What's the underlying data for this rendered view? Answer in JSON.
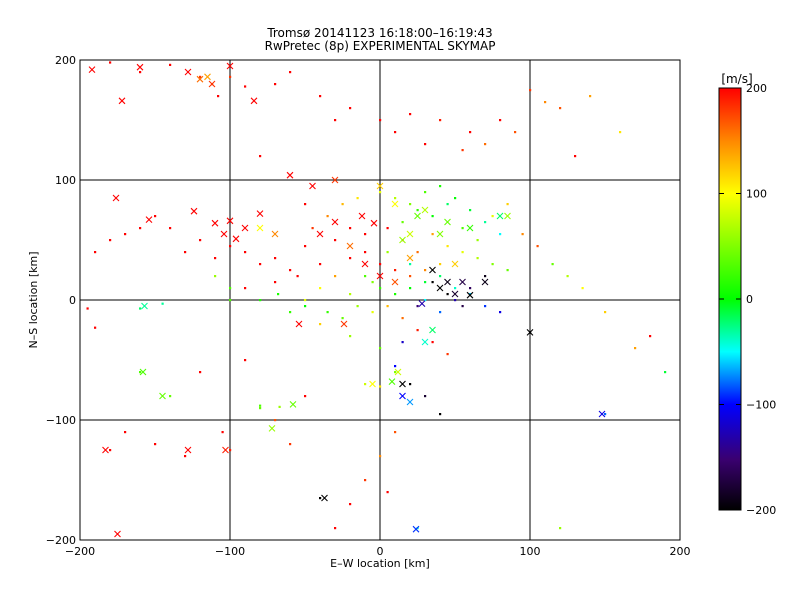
{
  "chart_data": {
    "type": "scatter",
    "title_line1": "Tromsø 20141123 16:18:00–16:19:43",
    "title_line2": "RwPretec (8p) EXPERIMENTAL SKYMAP",
    "xlabel": "E–W location [km]",
    "ylabel": "N–S location [km]",
    "xlim": [
      -200,
      200
    ],
    "ylim": [
      -200,
      200
    ],
    "xticks": [
      -200,
      -100,
      0,
      100,
      200
    ],
    "yticks": [
      -200,
      -100,
      0,
      100,
      200
    ],
    "xtick_labels": [
      "−200",
      "−100",
      "0",
      "100",
      "200"
    ],
    "ytick_labels": [
      "−200",
      "−100",
      "0",
      "100",
      "200"
    ],
    "grid": true,
    "colorbar": {
      "label": "[m/s]",
      "range": [
        -200,
        200
      ],
      "ticks": [
        200,
        100,
        0,
        -100,
        -200
      ],
      "tick_labels": [
        "200",
        "100",
        "0",
        "−100",
        "−200"
      ]
    },
    "points_note": "Each entry: [x_km, y_km, velocity_m_s]; small dots are individual echoes",
    "points": [
      [
        -180,
        198,
        200
      ],
      [
        -160,
        190,
        200
      ],
      [
        -140,
        196,
        200
      ],
      [
        -120,
        186,
        180
      ],
      [
        -112,
        180,
        200
      ],
      [
        -100,
        186,
        180
      ],
      [
        -90,
        178,
        200
      ],
      [
        -70,
        180,
        200
      ],
      [
        -40,
        170,
        200
      ],
      [
        -20,
        160,
        200
      ],
      [
        0,
        150,
        200
      ],
      [
        20,
        155,
        200
      ],
      [
        40,
        150,
        190
      ],
      [
        60,
        140,
        200
      ],
      [
        80,
        150,
        200
      ],
      [
        100,
        175,
        180
      ],
      [
        120,
        160,
        170
      ],
      [
        140,
        170,
        140
      ],
      [
        160,
        140,
        110
      ],
      [
        -60,
        190,
        200
      ],
      [
        -30,
        150,
        200
      ],
      [
        10,
        140,
        200
      ],
      [
        30,
        130,
        200
      ],
      [
        55,
        125,
        180
      ],
      [
        70,
        130,
        160
      ],
      [
        90,
        140,
        170
      ],
      [
        110,
        165,
        150
      ],
      [
        130,
        120,
        200
      ],
      [
        -108,
        170,
        200
      ],
      [
        -80,
        120,
        200
      ],
      [
        -50,
        80,
        200
      ],
      [
        -20,
        60,
        200
      ],
      [
        -10,
        40,
        200
      ],
      [
        0,
        30,
        200
      ],
      [
        10,
        25,
        190
      ],
      [
        20,
        20,
        170
      ],
      [
        30,
        25,
        150
      ],
      [
        40,
        30,
        120
      ],
      [
        -90,
        40,
        200
      ],
      [
        -80,
        30,
        200
      ],
      [
        -70,
        35,
        200
      ],
      [
        -60,
        25,
        200
      ],
      [
        -50,
        45,
        200
      ],
      [
        -40,
        30,
        200
      ],
      [
        -30,
        50,
        200
      ],
      [
        -20,
        35,
        200
      ],
      [
        -10,
        55,
        200
      ],
      [
        5,
        60,
        200
      ],
      [
        15,
        50,
        180
      ],
      [
        25,
        40,
        160
      ],
      [
        35,
        55,
        140
      ],
      [
        45,
        45,
        110
      ],
      [
        55,
        40,
        90
      ],
      [
        65,
        35,
        70
      ],
      [
        75,
        30,
        50
      ],
      [
        85,
        25,
        40
      ],
      [
        -100,
        45,
        200
      ],
      [
        -110,
        35,
        200
      ],
      [
        -120,
        50,
        200
      ],
      [
        -130,
        40,
        200
      ],
      [
        -140,
        60,
        200
      ],
      [
        -150,
        70,
        200
      ],
      [
        -160,
        60,
        200
      ],
      [
        -170,
        55,
        200
      ],
      [
        -180,
        50,
        200
      ],
      [
        -190,
        40,
        200
      ],
      [
        -10,
        20,
        30
      ],
      [
        0,
        10,
        20
      ],
      [
        10,
        5,
        10
      ],
      [
        20,
        10,
        0
      ],
      [
        30,
        15,
        -10
      ],
      [
        40,
        20,
        -20
      ],
      [
        50,
        10,
        -40
      ],
      [
        60,
        5,
        -60
      ],
      [
        70,
        -5,
        -90
      ],
      [
        80,
        -10,
        -110
      ],
      [
        20,
        30,
        -30
      ],
      [
        30,
        0,
        -50
      ],
      [
        40,
        -10,
        -80
      ],
      [
        50,
        0,
        -130
      ],
      [
        60,
        10,
        -160
      ],
      [
        70,
        20,
        -190
      ],
      [
        45,
        5,
        -200
      ],
      [
        35,
        15,
        -200
      ],
      [
        25,
        -5,
        -150
      ],
      [
        55,
        -5,
        -170
      ],
      [
        15,
        -35,
        -120
      ],
      [
        10,
        -55,
        -100
      ],
      [
        20,
        -70,
        -200
      ],
      [
        30,
        -80,
        -180
      ],
      [
        40,
        -95,
        -200
      ],
      [
        -40,
        -165,
        -200
      ],
      [
        -50,
        -80,
        200
      ],
      [
        -60,
        -120,
        180
      ],
      [
        -80,
        -90,
        40
      ],
      [
        -130,
        -130,
        200
      ],
      [
        -150,
        -120,
        200
      ],
      [
        -90,
        -50,
        200
      ],
      [
        -120,
        -60,
        200
      ],
      [
        -40,
        -20,
        120
      ],
      [
        -20,
        -30,
        60
      ],
      [
        0,
        -40,
        40
      ],
      [
        10,
        -60,
        50
      ],
      [
        -10,
        -70,
        80
      ],
      [
        -60,
        -10,
        20
      ],
      [
        -80,
        0,
        10
      ],
      [
        -100,
        10,
        30
      ],
      [
        -110,
        20,
        60
      ],
      [
        -30,
        20,
        140
      ],
      [
        -40,
        10,
        100
      ],
      [
        -50,
        0,
        90
      ],
      [
        -20,
        5,
        70
      ],
      [
        -5,
        15,
        50
      ],
      [
        5,
        40,
        60
      ],
      [
        15,
        65,
        40
      ],
      [
        25,
        75,
        20
      ],
      [
        35,
        70,
        0
      ],
      [
        45,
        80,
        -20
      ],
      [
        55,
        60,
        30
      ],
      [
        65,
        50,
        60
      ],
      [
        75,
        70,
        90
      ],
      [
        85,
        80,
        120
      ],
      [
        95,
        55,
        150
      ],
      [
        105,
        45,
        170
      ],
      [
        115,
        30,
        40
      ],
      [
        125,
        20,
        70
      ],
      [
        135,
        10,
        100
      ],
      [
        150,
        -10,
        120
      ],
      [
        170,
        -40,
        140
      ],
      [
        -160,
        -60,
        30
      ],
      [
        -140,
        -80,
        40
      ],
      [
        -170,
        -110,
        200
      ],
      [
        -180,
        -125,
        200
      ],
      [
        -100,
        -125,
        190
      ],
      [
        -105,
        -110,
        200
      ],
      [
        -70,
        -100,
        170
      ],
      [
        -30,
        -190,
        200
      ],
      [
        -20,
        -170,
        200
      ],
      [
        -10,
        -150,
        180
      ],
      [
        0,
        -130,
        150
      ],
      [
        10,
        -110,
        170
      ],
      [
        25,
        -190,
        -40
      ],
      [
        120,
        -190,
        60
      ],
      [
        100,
        -27,
        -200
      ],
      [
        150,
        -95,
        -80
      ],
      [
        -160,
        -7,
        -20
      ],
      [
        -145,
        -3,
        -30
      ],
      [
        -190,
        -23,
        200
      ],
      [
        -195,
        -7,
        200
      ],
      [
        -80,
        -88,
        30
      ],
      [
        -67,
        -89,
        60
      ],
      [
        0,
        -72,
        110
      ],
      [
        5,
        -160,
        200
      ],
      [
        180,
        -30,
        200
      ],
      [
        190,
        -60,
        -10
      ],
      [
        -100,
        0,
        30
      ],
      [
        -68,
        5,
        10
      ],
      [
        -50,
        -5,
        0
      ],
      [
        -35,
        -10,
        20
      ],
      [
        -25,
        -15,
        40
      ],
      [
        -15,
        -5,
        60
      ],
      [
        -5,
        -10,
        90
      ],
      [
        5,
        -5,
        130
      ],
      [
        15,
        -15,
        160
      ],
      [
        25,
        -25,
        190
      ],
      [
        35,
        -35,
        200
      ],
      [
        45,
        -45,
        180
      ],
      [
        -90,
        10,
        200
      ],
      [
        -70,
        15,
        200
      ],
      [
        -55,
        20,
        200
      ],
      [
        -45,
        60,
        180
      ],
      [
        -35,
        70,
        150
      ],
      [
        -25,
        80,
        130
      ],
      [
        -15,
        85,
        110
      ],
      [
        0,
        90,
        90
      ],
      [
        10,
        85,
        70
      ],
      [
        20,
        80,
        50
      ],
      [
        30,
        90,
        30
      ],
      [
        40,
        95,
        10
      ],
      [
        50,
        85,
        0
      ],
      [
        60,
        75,
        -10
      ],
      [
        70,
        65,
        -30
      ],
      [
        80,
        55,
        -50
      ]
    ],
    "cross_markers_note": "Cross markers: [x_km, y_km, velocity_m_s]",
    "cross_markers": [
      [
        -192,
        192,
        200
      ],
      [
        -160,
        194,
        200
      ],
      [
        -128,
        190,
        200
      ],
      [
        -115,
        186,
        140
      ],
      [
        -100,
        195,
        200
      ],
      [
        -172,
        166,
        200
      ],
      [
        -176,
        85,
        200
      ],
      [
        -154,
        67,
        200
      ],
      [
        -124,
        74,
        200
      ],
      [
        -96,
        51,
        200
      ],
      [
        -90,
        60,
        200
      ],
      [
        -80,
        72,
        200
      ],
      [
        -40,
        55,
        200
      ],
      [
        -30,
        65,
        200
      ],
      [
        -12,
        70,
        200
      ],
      [
        -4,
        64,
        200
      ],
      [
        20,
        55,
        80
      ],
      [
        15,
        50,
        60
      ],
      [
        40,
        55,
        50
      ],
      [
        25,
        70,
        40
      ],
      [
        60,
        60,
        20
      ],
      [
        80,
        70,
        -20
      ],
      [
        85,
        70,
        60
      ],
      [
        -54,
        -20,
        200
      ],
      [
        -24,
        -20,
        180
      ],
      [
        -128,
        -125,
        200
      ],
      [
        -183,
        -125,
        200
      ],
      [
        -103,
        -125,
        190
      ],
      [
        -58,
        -87,
        40
      ],
      [
        -72,
        -107,
        60
      ],
      [
        -37,
        -165,
        -200
      ],
      [
        24,
        -191,
        -90
      ],
      [
        100,
        -27,
        -200
      ],
      [
        148,
        -95,
        -110
      ],
      [
        -157,
        -5,
        -30
      ],
      [
        -175,
        -195,
        200
      ],
      [
        15,
        -80,
        -100
      ],
      [
        15,
        -70,
        -200
      ],
      [
        20,
        -85,
        -70
      ],
      [
        30,
        -35,
        -40
      ],
      [
        35,
        -25,
        -20
      ],
      [
        40,
        10,
        -200
      ],
      [
        45,
        15,
        -190
      ],
      [
        50,
        5,
        -180
      ],
      [
        55,
        15,
        -170
      ],
      [
        35,
        25,
        -200
      ],
      [
        28,
        -3,
        -130
      ],
      [
        60,
        4,
        -200
      ],
      [
        70,
        15,
        -190
      ],
      [
        -100,
        66,
        200
      ],
      [
        -104,
        55,
        200
      ],
      [
        -110,
        64,
        200
      ],
      [
        -112,
        180,
        180
      ],
      [
        -120,
        184,
        160
      ],
      [
        -84,
        166,
        200
      ],
      [
        -60,
        104,
        200
      ],
      [
        -45,
        95,
        200
      ],
      [
        -70,
        55,
        150
      ],
      [
        -80,
        60,
        100
      ],
      [
        -30,
        100,
        180
      ],
      [
        0,
        95,
        120
      ],
      [
        10,
        80,
        100
      ],
      [
        30,
        75,
        70
      ],
      [
        45,
        65,
        40
      ],
      [
        -20,
        45,
        160
      ],
      [
        -10,
        30,
        200
      ],
      [
        0,
        20,
        200
      ],
      [
        10,
        15,
        170
      ],
      [
        20,
        35,
        140
      ],
      [
        50,
        30,
        120
      ],
      [
        -5,
        -70,
        100
      ],
      [
        8,
        -68,
        30
      ],
      [
        12,
        -60,
        80
      ],
      [
        -158,
        -60,
        30
      ],
      [
        -145,
        -80,
        40
      ]
    ]
  }
}
